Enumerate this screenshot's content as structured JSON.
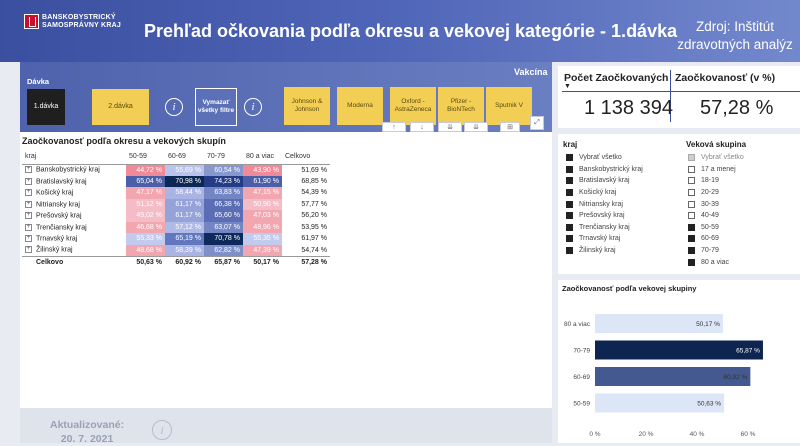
{
  "header": {
    "logo_line1": "BANSKOBYSTRICKÝ",
    "logo_line2": "SAMOSPRÁVNY KRAJ",
    "title": "Prehľad očkovania podľa okresu a vekovej kategórie -  1.dávka",
    "source": "Zdroj: Inštitút zdravotných analýz"
  },
  "filters": {
    "davka_label": "Dávka",
    "dose_buttons": [
      "1.dávka",
      "2.dávka"
    ],
    "clear_label": "Vymazať všetky filtre",
    "info_icon": "i",
    "vakcina_label": "Vakcína",
    "vaccines": [
      "Johnson & Johnson",
      "Moderna",
      "Oxford - AstraZeneca",
      "Pfizer - BioNTech",
      "Sputnik V"
    ],
    "visual_controls": [
      "↑",
      "↓",
      "⇊",
      "⇊",
      "⊞",
      "⤢"
    ]
  },
  "matrix": {
    "title": "Zaočkovanosť podľa okresu a vekových skupín",
    "headers": [
      "kraj",
      "50-59",
      "60-69",
      "70-79",
      "80 a viac",
      "Celkovo"
    ],
    "rows": [
      {
        "kraj": "Banskobystrický kraj",
        "v": [
          "44,72 %",
          "55,69 %",
          "60,54 %",
          "43,90 %"
        ],
        "c": [
          "#f08a98",
          "#b9c3ec",
          "#8797cf",
          "#f08a98"
        ],
        "tot": "51,69 %"
      },
      {
        "kraj": "Bratislavský kraj",
        "v": [
          "65,04 %",
          "70,98 %",
          "74,23 %",
          "61,90 %"
        ],
        "c": [
          "#4a5fa8",
          "#0b2753",
          "#233c85",
          "#4a5fa8"
        ],
        "tot": "68,85 %"
      },
      {
        "kraj": "Košický kraj",
        "v": [
          "47,17 %",
          "58,44 %",
          "63,83 %",
          "47,15 %"
        ],
        "c": [
          "#f2a6b0",
          "#aab4e4",
          "#7485c4",
          "#f2a6b0"
        ],
        "tot": "54,39 %"
      },
      {
        "kraj": "Nitriansky kraj",
        "v": [
          "51,12 %",
          "61,17 %",
          "66,38 %",
          "50,90 %"
        ],
        "c": [
          "#f4bcc6",
          "#95a3d8",
          "#5a6db5",
          "#f4bcc6"
        ],
        "tot": "57,77 %"
      },
      {
        "kraj": "Prešovský kraj",
        "v": [
          "49,02 %",
          "61,17 %",
          "65,60 %",
          "47,03 %"
        ],
        "c": [
          "#f4bcc6",
          "#95a3d8",
          "#5a6db5",
          "#f2a6b0"
        ],
        "tot": "56,20 %"
      },
      {
        "kraj": "Trenčiansky kraj",
        "v": [
          "46,68 %",
          "57,12 %",
          "63,07 %",
          "48,96 %"
        ],
        "c": [
          "#f2a6b0",
          "#b0bae6",
          "#7485c4",
          "#f2a6b0"
        ],
        "tot": "53,95 %"
      },
      {
        "kraj": "Trnavský kraj",
        "v": [
          "55,33 %",
          "65,19 %",
          "70,78 %",
          "55,35 %"
        ],
        "c": [
          "#c2cbee",
          "#6277bd",
          "#0f2a5a",
          "#c2cbee"
        ],
        "tot": "61,97 %"
      },
      {
        "kraj": "Žilinský kraj",
        "v": [
          "48,68 %",
          "58,39 %",
          "62,82 %",
          "47,39 %"
        ],
        "c": [
          "#f2a6b0",
          "#aab4e4",
          "#7f8fca",
          "#f2a6b0"
        ],
        "tot": "54,74 %"
      }
    ],
    "total_row": {
      "label": "Celkovo",
      "v": [
        "50,63 %",
        "60,92 %",
        "65,87 %",
        "50,17 %"
      ],
      "tot": "57,28 %"
    }
  },
  "footer": {
    "updated_label": "Aktualizované:",
    "updated_date": "20. 7. 2021",
    "info_icon": "i"
  },
  "kpi": {
    "count_label": "Počet Zaočkovaných",
    "count_value": "1 138 394",
    "sort_icon": "▼",
    "rate_label": "Zaočkovanosť (v %)",
    "rate_value": "57,28 %"
  },
  "slicer_kraj": {
    "label": "kraj",
    "items": [
      "Vybrať všetko",
      "Banskobystrický kraj",
      "Bratislavský kraj",
      "Košický kraj",
      "Nitriansky kraj",
      "Prešovský kraj",
      "Trenčiansky kraj",
      "Trnavský kraj",
      "Žilinský kraj"
    ],
    "checked": [
      true,
      true,
      true,
      true,
      true,
      true,
      true,
      true,
      true
    ]
  },
  "slicer_vek": {
    "label": "Veková skupina",
    "items": [
      "Vybrať všetko",
      "17 a menej",
      "18-19",
      "20-29",
      "30-39",
      "40-49",
      "50-59",
      "60-69",
      "70-79",
      "80 a viac"
    ],
    "state": [
      "partial",
      "off",
      "off",
      "off",
      "off",
      "off",
      "on",
      "on",
      "on",
      "on"
    ]
  },
  "chart_data": {
    "type": "bar",
    "orientation": "horizontal",
    "title": "Zaočkovanosť podľa vekovej skupiny",
    "categories": [
      "80 a viac",
      "70-79",
      "60-69",
      "50-59"
    ],
    "values": [
      50.17,
      65.87,
      60.92,
      50.63
    ],
    "value_labels": [
      "50,17 %",
      "65,87 %",
      "60,92 %",
      "50,63 %"
    ],
    "colors": [
      "#dde6f7",
      "#0d2550",
      "#44598f",
      "#dde6f7"
    ],
    "label_colors": [
      "#333333",
      "#ffffff",
      "#333333",
      "#333333"
    ],
    "xlim": [
      0,
      60
    ],
    "xticks": [
      "0 %",
      "20 %",
      "40 %",
      "60 %"
    ],
    "grid": false
  }
}
